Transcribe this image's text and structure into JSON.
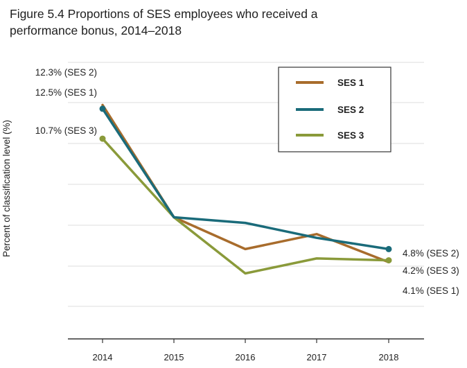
{
  "title_line1": "Figure 5.4 Proportions of SES employees who received a",
  "title_line2": "performance bonus, 2014–2018",
  "chart_data": {
    "type": "line",
    "title": "Figure 5.4 Proportions of SES employees who received a performance bonus, 2014–2018",
    "xlabel": "",
    "ylabel": "Percent of classification level (%)",
    "categories": [
      "2014",
      "2015",
      "2016",
      "2017",
      "2018"
    ],
    "ylim": [
      0,
      13.5
    ],
    "grid": "horizontal",
    "legend_position": "top-right",
    "series": [
      {
        "name": "SES 1",
        "color": "#a86c2c",
        "values": [
          12.5,
          6.5,
          4.8,
          5.6,
          4.1
        ]
      },
      {
        "name": "SES 2",
        "color": "#1a6b7a",
        "values": [
          12.3,
          6.5,
          6.2,
          5.4,
          4.8
        ]
      },
      {
        "name": "SES 3",
        "color": "#8a9a3a",
        "values": [
          10.7,
          6.5,
          3.5,
          4.3,
          4.2
        ]
      }
    ],
    "annotations": [
      {
        "text": "12.3% (SES 2)",
        "series": "SES 2",
        "year": "2014"
      },
      {
        "text": "12.5% (SES 1)",
        "series": "SES 1",
        "year": "2014"
      },
      {
        "text": "10.7% (SES 3)",
        "series": "SES 3",
        "year": "2014"
      },
      {
        "text": "4.8% (SES 2)",
        "series": "SES 2",
        "year": "2018"
      },
      {
        "text": "4.2% (SES 3)",
        "series": "SES 3",
        "year": "2018"
      },
      {
        "text": "4.1% (SES 1)",
        "series": "SES 1",
        "year": "2018"
      }
    ]
  }
}
